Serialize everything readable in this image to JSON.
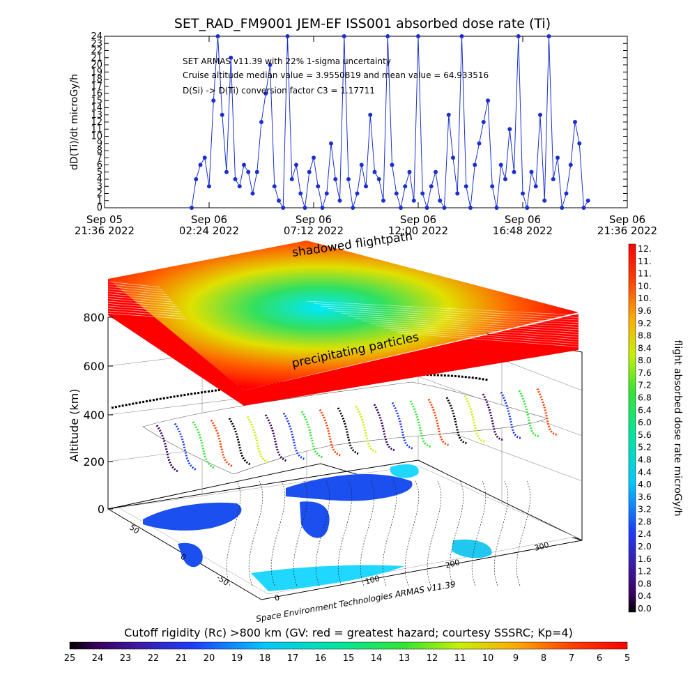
{
  "top_chart": {
    "title": "SET_RAD_FM9001  JEM-EF ISS001 absorbed dose rate (Ti)",
    "ylabel": "dD(Ti)/dt microGy/h",
    "ylim": [
      0,
      24
    ],
    "ytick_labels": [
      "0",
      "1",
      "2",
      "3",
      "4",
      "5",
      "6",
      "7",
      "8",
      "9",
      "10",
      "11",
      "12",
      "13",
      "14",
      "15",
      "16",
      "17",
      "18",
      "19",
      "20",
      "21",
      "22",
      "23",
      "24"
    ],
    "xtick_labels": [
      {
        "line1": "Sep 05",
        "line2": "21:36 2022"
      },
      {
        "line1": "Sep 06",
        "line2": "02:24 2022"
      },
      {
        "line1": "Sep 06",
        "line2": "07:12 2022"
      },
      {
        "line1": "Sep 06",
        "line2": "12:00 2022"
      },
      {
        "line1": "Sep 06",
        "line2": "16:48 2022"
      },
      {
        "line1": "Sep 06",
        "line2": "21:36 2022"
      }
    ],
    "annotations": [
      "SET ARMAS v11.39 with 22% 1-sigma uncertainty",
      "Cruise altitude median value = 3.9550819 and mean value = 64.933516",
      "D(Si) -> D(Ti) conversion factor C3 = 1.17711"
    ],
    "series_color": "#1a2fd0"
  },
  "chart_data": {
    "type": "line",
    "x_units": "hours since Sep 05 21:36 2022",
    "xlim": [
      0,
      24
    ],
    "ylim": [
      0,
      24
    ],
    "x": [
      4.0,
      4.2,
      4.4,
      4.6,
      4.8,
      5.0,
      5.2,
      5.4,
      5.6,
      5.8,
      6.0,
      6.2,
      6.4,
      6.6,
      6.8,
      7.0,
      7.2,
      7.4,
      7.6,
      7.8,
      8.0,
      8.2,
      8.4,
      8.6,
      8.8,
      9.0,
      9.2,
      9.4,
      9.6,
      9.8,
      10.0,
      10.2,
      10.4,
      10.6,
      10.8,
      11.0,
      11.2,
      11.4,
      11.6,
      11.8,
      12.0,
      12.2,
      12.4,
      12.6,
      12.8,
      13.0,
      13.2,
      13.4,
      13.6,
      13.8,
      14.0,
      14.2,
      14.4,
      14.6,
      14.8,
      15.0,
      15.2,
      15.4,
      15.6,
      15.8,
      16.0,
      16.2,
      16.4,
      16.6,
      16.8,
      17.0,
      17.2,
      17.4,
      17.6,
      17.8,
      18.0,
      18.2,
      18.4,
      18.6,
      18.8,
      19.0,
      19.2,
      19.4,
      19.6,
      19.8,
      20.0,
      20.2,
      20.4,
      20.6,
      20.8,
      21.0,
      21.2,
      21.4,
      21.6,
      21.8,
      22.0,
      22.2
    ],
    "y": [
      0,
      4,
      6,
      7,
      3,
      15,
      24,
      13,
      5,
      21,
      4,
      3,
      6,
      5,
      2,
      5,
      12,
      16,
      20,
      3,
      1,
      0,
      24,
      4,
      6,
      2,
      0,
      5,
      7,
      3,
      0,
      2,
      9,
      4,
      1,
      24,
      4,
      0,
      2,
      6,
      3,
      13,
      5,
      4,
      1,
      24,
      6,
      2,
      0,
      3,
      5,
      1,
      24,
      2,
      0,
      3,
      5,
      1,
      0,
      13,
      7,
      2,
      24,
      3,
      0,
      6,
      9,
      12,
      15,
      3,
      0,
      6,
      4,
      11,
      5,
      24,
      2,
      0,
      5,
      3,
      13,
      1,
      24,
      4,
      7,
      0,
      2,
      6,
      12,
      9,
      0,
      1
    ],
    "colorbar_right": {
      "label": "flight absorbed dose rate microGy/h",
      "tick_labels": [
        "12.",
        "11.",
        "11.",
        "10.",
        "10.",
        "9.6",
        "9.2",
        "8.8",
        "8.4",
        "8.0",
        "7.6",
        "7.2",
        "6.8",
        "6.4",
        "6.0",
        "5.6",
        "5.2",
        "4.8",
        "4.4",
        "4.0",
        "3.6",
        "3.2",
        "2.8",
        "2.4",
        "2.0",
        "1.6",
        "1.2",
        "0.8",
        "0.4",
        "0.0"
      ]
    },
    "colorbar_bottom": {
      "label": "Cutoff rigidity (Rc) >800 km (GV: red = greatest hazard; courtesy SSSRC; Kp=4)",
      "tick_labels": [
        "25",
        "24",
        "23",
        "22",
        "21",
        "20",
        "19",
        "18",
        "17",
        "16",
        "15",
        "14",
        "13",
        "12",
        "11",
        "10",
        "9",
        "8",
        "7",
        "6",
        "5"
      ]
    }
  },
  "plot3d": {
    "ylabel": "Altitude (km)",
    "z_ticks": [
      "0",
      "200",
      "400",
      "600",
      "800"
    ],
    "lon_ticks": [
      "0",
      "100",
      "200",
      "300"
    ],
    "lat_ticks": [
      "50",
      "0",
      "-50"
    ],
    "slab_label_top": "shadowed flightpath",
    "slab_label_front": "precipitating particles",
    "credit": "Space Environment Technologies ARMAS v11.39"
  }
}
